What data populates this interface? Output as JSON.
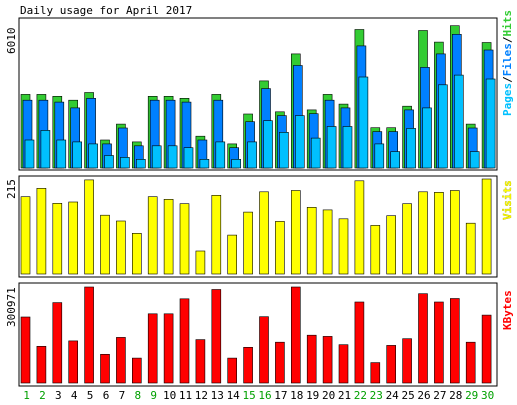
{
  "title": "Daily usage for April 2017",
  "colors": {
    "hits": "#33cc33",
    "files": "#0080ff",
    "pages": "#00c0ff",
    "visits": "#ffff00",
    "kbytes": "#ff0000",
    "weekend_day_label": "#00a000",
    "weekday_day_label": "#000000",
    "panel_background": "#ffffff",
    "panel_border": "#000000"
  },
  "chart_data": [
    {
      "type": "bar",
      "title": "Daily usage for April 2017",
      "categories": [
        "1",
        "2",
        "3",
        "4",
        "5",
        "6",
        "7",
        "8",
        "9",
        "10",
        "11",
        "12",
        "13",
        "14",
        "15",
        "16",
        "17",
        "18",
        "19",
        "20",
        "21",
        "22",
        "23",
        "24",
        "25",
        "26",
        "27",
        "28",
        "29",
        "30"
      ],
      "weekend_days": [
        "1",
        "2",
        "8",
        "9",
        "15",
        "16",
        "22",
        "23",
        "29",
        "30"
      ],
      "ymax_label": "6010",
      "ylim": [
        0,
        6010
      ],
      "legend": [
        "Pages",
        "Files",
        "Hits"
      ],
      "legend_position": "right",
      "series": [
        {
          "name": "Hits",
          "values": [
            3050,
            3050,
            2970,
            2810,
            3130,
            1160,
            1820,
            1080,
            2970,
            2970,
            2890,
            1320,
            3050,
            1000,
            2240,
            3610,
            2330,
            4730,
            2410,
            3050,
            2650,
            5740,
            1670,
            1670,
            2560,
            5700,
            5220,
            5900,
            1820,
            5200
          ]
        },
        {
          "name": "Files",
          "values": [
            2810,
            2810,
            2730,
            2490,
            2890,
            1000,
            1660,
            920,
            2810,
            2810,
            2730,
            1160,
            2810,
            840,
            1920,
            3290,
            2170,
            4250,
            2250,
            2810,
            2490,
            5060,
            1510,
            1510,
            2410,
            4170,
            4730,
            5540,
            1660,
            4890
          ]
        },
        {
          "name": "Pages",
          "values": [
            1160,
            1560,
            1160,
            1080,
            1000,
            520,
            440,
            360,
            920,
            920,
            840,
            360,
            1080,
            360,
            1080,
            1960,
            1480,
            2170,
            1240,
            1720,
            1720,
            3770,
            1000,
            680,
            1640,
            2490,
            3450,
            3850,
            680,
            3690
          ]
        }
      ]
    },
    {
      "type": "bar",
      "categories": [
        "1",
        "2",
        "3",
        "4",
        "5",
        "6",
        "7",
        "8",
        "9",
        "10",
        "11",
        "12",
        "13",
        "14",
        "15",
        "16",
        "17",
        "18",
        "19",
        "20",
        "21",
        "22",
        "23",
        "24",
        "25",
        "26",
        "27",
        "28",
        "29",
        "30"
      ],
      "ymax_label": "215",
      "ylim": [
        0,
        215
      ],
      "legend": [
        "Visits"
      ],
      "legend_position": "right",
      "series": [
        {
          "name": "Visits",
          "values": [
            175,
            194,
            160,
            163,
            213,
            133,
            120,
            92,
            175,
            169,
            159,
            52,
            178,
            88,
            140,
            186,
            119,
            189,
            151,
            145,
            125,
            211,
            110,
            132,
            159,
            186,
            185,
            189,
            115,
            215
          ]
        }
      ]
    },
    {
      "type": "bar",
      "categories": [
        "1",
        "2",
        "3",
        "4",
        "5",
        "6",
        "7",
        "8",
        "9",
        "10",
        "11",
        "12",
        "13",
        "14",
        "15",
        "16",
        "17",
        "18",
        "19",
        "20",
        "21",
        "22",
        "23",
        "24",
        "25",
        "26",
        "27",
        "28",
        "29",
        "30"
      ],
      "ymax_label": "300971",
      "ylim": [
        0,
        300971
      ],
      "legend": [
        "KBytes"
      ],
      "legend_position": "right",
      "series": [
        {
          "name": "KBytes",
          "values": [
            207000,
            115000,
            252000,
            132000,
            300971,
            90000,
            143000,
            78000,
            217000,
            217000,
            264000,
            136000,
            293000,
            78000,
            112000,
            208000,
            128000,
            300971,
            150000,
            146000,
            120000,
            254000,
            64000,
            118000,
            139000,
            280000,
            254000,
            265000,
            128000,
            213000
          ]
        }
      ]
    }
  ]
}
